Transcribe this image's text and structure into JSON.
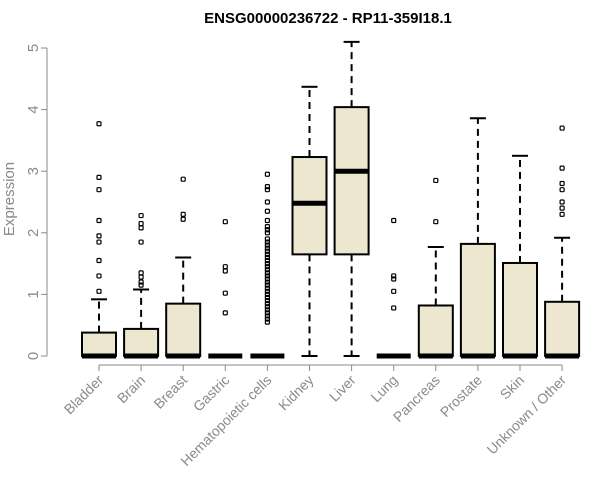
{
  "chart_data": {
    "type": "boxplot",
    "title": "ENSG00000236722 - RP11-359I18.1",
    "ylabel": "Expression",
    "xlabel": "",
    "ylim": [
      0,
      5.1
    ],
    "yticks": [
      0,
      1,
      2,
      3,
      4,
      5
    ],
    "ytick_labels": [
      "0",
      "1",
      "2",
      "3",
      "4",
      "5"
    ],
    "box_fill": "#ede7cf",
    "categories": [
      "Bladder",
      "Brain",
      "Breast",
      "Gastric",
      "Hematopoietic cells",
      "Kidney",
      "Liver",
      "Lung",
      "Pancreas",
      "Prostate",
      "Skin",
      "Unknown / Other"
    ],
    "boxes": [
      {
        "q1": 0,
        "median": 0,
        "q3": 0.38,
        "whisker_low": 0,
        "whisker_high": 0.92,
        "outliers": [
          1.05,
          1.3,
          1.55,
          1.85,
          1.95,
          2.2,
          2.7,
          2.9,
          3.77
        ]
      },
      {
        "q1": 0,
        "median": 0,
        "q3": 0.44,
        "whisker_low": 0,
        "whisker_high": 1.08,
        "outliers": [
          1.15,
          1.2,
          1.28,
          1.35,
          1.85,
          2.08,
          2.15,
          2.28
        ]
      },
      {
        "q1": 0,
        "median": 0,
        "q3": 0.85,
        "whisker_low": 0,
        "whisker_high": 1.6,
        "outliers": [
          2.22,
          2.3,
          2.87
        ]
      },
      {
        "q1": 0,
        "median": 0,
        "q3": 0,
        "whisker_low": 0,
        "whisker_high": 0,
        "outliers": [
          0.7,
          1.02,
          1.38,
          1.45,
          2.18
        ]
      },
      {
        "q1": 0,
        "median": 0,
        "q3": 0,
        "whisker_low": 0,
        "whisker_high": 0,
        "outliers": [
          0.55,
          0.6,
          0.65,
          0.7,
          0.75,
          0.8,
          0.85,
          0.9,
          0.95,
          1.0,
          1.05,
          1.1,
          1.15,
          1.2,
          1.25,
          1.3,
          1.35,
          1.4,
          1.45,
          1.5,
          1.55,
          1.6,
          1.65,
          1.7,
          1.75,
          1.8,
          1.85,
          1.9,
          2.0,
          2.05,
          2.1,
          2.2,
          2.35,
          2.5,
          2.7,
          2.75,
          2.95
        ]
      },
      {
        "q1": 1.65,
        "median": 2.48,
        "q3": 3.23,
        "whisker_low": 0,
        "whisker_high": 4.37,
        "outliers": []
      },
      {
        "q1": 1.65,
        "median": 3.0,
        "q3": 4.04,
        "whisker_low": 0,
        "whisker_high": 5.1,
        "outliers": []
      },
      {
        "q1": 0,
        "median": 0,
        "q3": 0,
        "whisker_low": 0,
        "whisker_high": 0,
        "outliers": [
          0.78,
          1.05,
          1.25,
          1.3,
          2.2
        ]
      },
      {
        "q1": 0,
        "median": 0,
        "q3": 0.82,
        "whisker_low": 0,
        "whisker_high": 1.77,
        "outliers": [
          2.18,
          2.85
        ]
      },
      {
        "q1": 0,
        "median": 0,
        "q3": 1.82,
        "whisker_low": 0,
        "whisker_high": 3.86,
        "outliers": []
      },
      {
        "q1": 0,
        "median": 0,
        "q3": 1.51,
        "whisker_low": 0,
        "whisker_high": 3.25,
        "outliers": []
      },
      {
        "q1": 0,
        "median": 0,
        "q3": 0.88,
        "whisker_low": 0,
        "whisker_high": 1.92,
        "outliers": [
          2.3,
          2.4,
          2.5,
          2.7,
          2.8,
          3.05,
          3.7
        ]
      }
    ]
  }
}
